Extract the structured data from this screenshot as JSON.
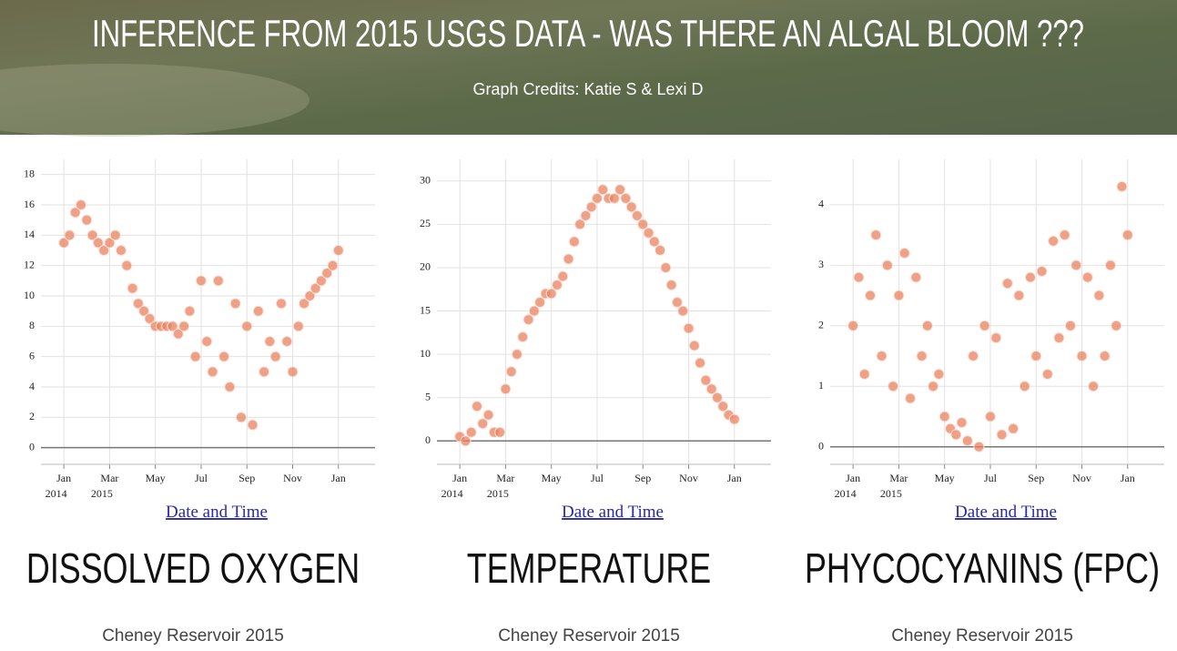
{
  "header": {
    "title": "INFERENCE FROM 2015 USGS DATA - WAS THERE AN ALGAL BLOOM ???",
    "credits": "Graph Credits: Katie S & Lexi D"
  },
  "chart_data": [
    {
      "type": "scatter",
      "title": "DISSOLVED OXYGEN",
      "subtitle": "Cheney Reservoir 2015",
      "x_label": "Date and Time",
      "color": "#e8825f",
      "grid": true,
      "xlim": [
        -1,
        13.6
      ],
      "ylim": [
        -1.1,
        19
      ],
      "xticks": [
        {
          "value": 0,
          "label": "Jan 2014"
        },
        {
          "value": 2,
          "label": "Mar 2015"
        },
        {
          "value": 4,
          "label": "May"
        },
        {
          "value": 6,
          "label": "Jul"
        },
        {
          "value": 8,
          "label": "Sep"
        },
        {
          "value": 10,
          "label": "Nov"
        },
        {
          "value": 12,
          "label": "Jan"
        }
      ],
      "yticks": [
        0,
        2,
        4,
        6,
        8,
        10,
        12,
        14,
        16,
        18
      ],
      "x": [
        0,
        0.25,
        0.5,
        0.75,
        1,
        1.25,
        1.5,
        1.75,
        2,
        2.25,
        2.5,
        2.75,
        3,
        3.25,
        3.5,
        3.75,
        4,
        4.25,
        4.5,
        4.75,
        5,
        5.25,
        5.5,
        5.75,
        6,
        6.25,
        6.5,
        6.75,
        7,
        7.25,
        7.5,
        7.75,
        8,
        8.25,
        8.5,
        8.75,
        9,
        9.25,
        9.5,
        9.75,
        10,
        10.25,
        10.5,
        10.75,
        11,
        11.25,
        11.5,
        11.75,
        12
      ],
      "values": [
        13.5,
        14,
        15.5,
        16,
        15,
        14,
        13.5,
        13,
        13.5,
        14,
        13,
        12,
        10.5,
        9.5,
        9,
        8.5,
        8,
        8,
        8,
        8,
        7.5,
        8,
        9,
        6,
        11,
        7,
        5,
        11,
        6,
        4,
        9.5,
        2,
        8,
        1.5,
        9,
        5,
        7,
        6,
        9.5,
        7,
        5,
        8,
        9.5,
        10,
        10.5,
        11,
        11.5,
        12,
        13
      ]
    },
    {
      "type": "scatter",
      "title": "TEMPERATURE",
      "subtitle": "Cheney Reservoir 2015",
      "x_label": "Date and Time",
      "color": "#e8825f",
      "grid": true,
      "xlim": [
        -1,
        13.6
      ],
      "ylim": [
        -2.7,
        32.5
      ],
      "xticks": [
        {
          "value": 0,
          "label": "Jan 2014"
        },
        {
          "value": 2,
          "label": "Mar 2015"
        },
        {
          "value": 4,
          "label": "May"
        },
        {
          "value": 6,
          "label": "Jul"
        },
        {
          "value": 8,
          "label": "Sep"
        },
        {
          "value": 10,
          "label": "Nov"
        },
        {
          "value": 12,
          "label": "Jan"
        }
      ],
      "yticks": [
        0,
        5,
        10,
        15,
        20,
        25,
        30
      ],
      "x": [
        0,
        0.25,
        0.5,
        0.75,
        1,
        1.25,
        1.5,
        1.75,
        2,
        2.25,
        2.5,
        2.75,
        3,
        3.25,
        3.5,
        3.75,
        4,
        4.25,
        4.5,
        4.75,
        5,
        5.25,
        5.5,
        5.75,
        6,
        6.25,
        6.5,
        6.75,
        7,
        7.25,
        7.5,
        7.75,
        8,
        8.25,
        8.5,
        8.75,
        9,
        9.25,
        9.5,
        9.75,
        10,
        10.25,
        10.5,
        10.75,
        11,
        11.25,
        11.5,
        11.75,
        12
      ],
      "values": [
        0.5,
        0,
        1,
        4,
        2,
        3,
        1,
        1,
        6,
        8,
        10,
        12,
        14,
        15,
        16,
        17,
        17,
        18,
        19,
        21,
        23,
        25,
        26,
        27,
        28,
        29,
        28,
        28,
        29,
        28,
        27,
        26,
        25,
        24,
        23,
        22,
        20,
        18,
        16,
        15,
        13,
        11,
        9,
        7,
        6,
        5,
        4,
        3,
        2.5
      ]
    },
    {
      "type": "scatter",
      "title": "PHYCOCYANINS (FPC)",
      "subtitle": "Cheney Reservoir 2015",
      "x_label": "Date and Time",
      "color": "#e8825f",
      "grid": true,
      "xlim": [
        -1,
        13.6
      ],
      "ylim": [
        -0.29,
        4.75
      ],
      "xticks": [
        {
          "value": 0,
          "label": "Jan 2014"
        },
        {
          "value": 2,
          "label": "Mar 2015"
        },
        {
          "value": 4,
          "label": "May"
        },
        {
          "value": 6,
          "label": "Jul"
        },
        {
          "value": 8,
          "label": "Sep"
        },
        {
          "value": 10,
          "label": "Nov"
        },
        {
          "value": 12,
          "label": "Jan"
        }
      ],
      "yticks": [
        0,
        1,
        2,
        3,
        4
      ],
      "x": [
        0,
        0.25,
        0.5,
        0.75,
        1,
        1.25,
        1.5,
        1.75,
        2,
        2.25,
        2.5,
        2.75,
        3,
        3.25,
        3.5,
        3.75,
        4,
        4.25,
        4.5,
        4.75,
        5,
        5.25,
        5.5,
        5.75,
        6,
        6.25,
        6.5,
        6.75,
        7,
        7.25,
        7.5,
        7.75,
        8,
        8.25,
        8.5,
        8.75,
        9,
        9.25,
        9.5,
        9.75,
        10,
        10.25,
        10.5,
        10.75,
        11,
        11.25,
        11.5,
        11.75,
        12
      ],
      "values": [
        2,
        2.8,
        1.2,
        2.5,
        3.5,
        1.5,
        3,
        1,
        2.5,
        3.2,
        0.8,
        2.8,
        1.5,
        2,
        1,
        1.2,
        0.5,
        0.3,
        0.2,
        0.4,
        0.1,
        1.5,
        0,
        2,
        0.5,
        1.8,
        0.2,
        2.7,
        0.3,
        2.5,
        1,
        2.8,
        1.5,
        2.9,
        1.2,
        3.4,
        1.8,
        3.5,
        2,
        3,
        1.5,
        2.8,
        1,
        2.5,
        1.5,
        3,
        2,
        4.3,
        3.5
      ]
    }
  ]
}
